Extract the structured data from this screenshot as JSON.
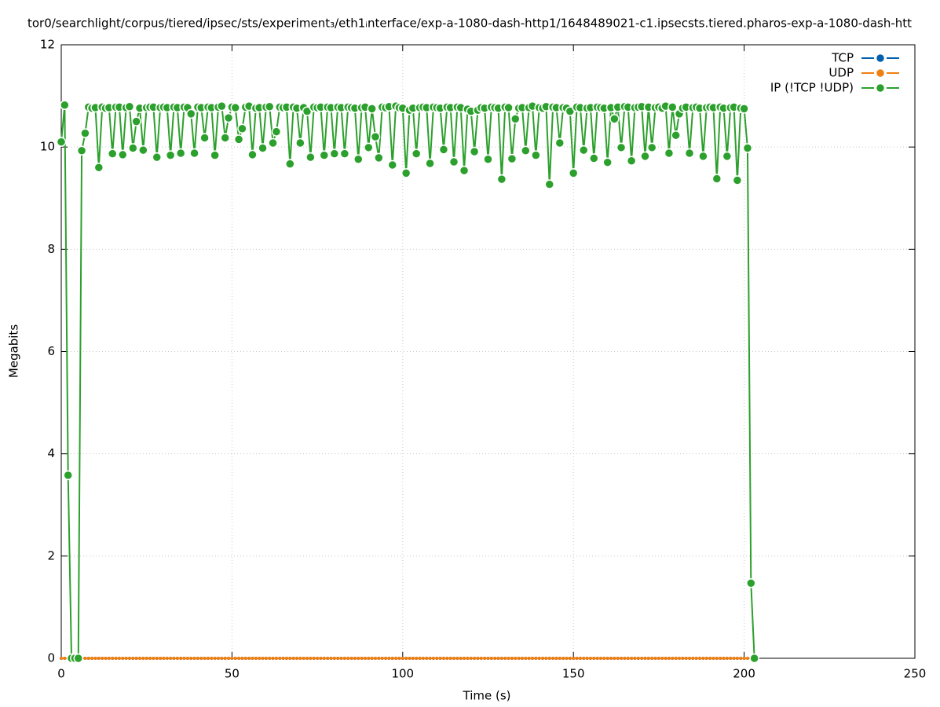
{
  "chart_data": {
    "type": "line",
    "title": "tor0/searchlight/corpus/tiered/ipsec/sts/experiment₃/eth1ᵢnterface/exp-a-1080-dash-http1/1648489021-c1.ipsecsts.tiered.pharos-exp-a-1080-dash-htt",
    "xlabel": "Time (s)",
    "ylabel": "Megabits",
    "xlim": [
      0,
      250
    ],
    "xticks": [
      0,
      50,
      100,
      150,
      200,
      250
    ],
    "ylim": [
      0,
      12
    ],
    "yticks": [
      0,
      2,
      4,
      6,
      8,
      10,
      12
    ],
    "grid": true,
    "legend": "top-right",
    "x": [
      0,
      1,
      2,
      3,
      4,
      5,
      6,
      7,
      8,
      9,
      10,
      11,
      12,
      13,
      14,
      15,
      16,
      17,
      18,
      19,
      20,
      21,
      22,
      23,
      24,
      25,
      26,
      27,
      28,
      29,
      30,
      31,
      32,
      33,
      34,
      35,
      36,
      37,
      38,
      39,
      40,
      41,
      42,
      43,
      44,
      45,
      46,
      47,
      48,
      49,
      50,
      51,
      52,
      53,
      54,
      55,
      56,
      57,
      58,
      59,
      60,
      61,
      62,
      63,
      64,
      65,
      66,
      67,
      68,
      69,
      70,
      71,
      72,
      73,
      74,
      75,
      76,
      77,
      78,
      79,
      80,
      81,
      82,
      83,
      84,
      85,
      86,
      87,
      88,
      89,
      90,
      91,
      92,
      93,
      94,
      95,
      96,
      97,
      98,
      99,
      100,
      101,
      102,
      103,
      104,
      105,
      106,
      107,
      108,
      109,
      110,
      111,
      112,
      113,
      114,
      115,
      116,
      117,
      118,
      119,
      120,
      121,
      122,
      123,
      124,
      125,
      126,
      127,
      128,
      129,
      130,
      131,
      132,
      133,
      134,
      135,
      136,
      137,
      138,
      139,
      140,
      141,
      142,
      143,
      144,
      145,
      146,
      147,
      148,
      149,
      150,
      151,
      152,
      153,
      154,
      155,
      156,
      157,
      158,
      159,
      160,
      161,
      162,
      163,
      164,
      165,
      166,
      167,
      168,
      169,
      170,
      171,
      172,
      173,
      174,
      175,
      176,
      177,
      178,
      179,
      180,
      181,
      182,
      183,
      184,
      185,
      186,
      187,
      188,
      189,
      190,
      191,
      192,
      193,
      194,
      195,
      196,
      197,
      198,
      199,
      200,
      201,
      202,
      203
    ],
    "series": [
      {
        "name": "TCP",
        "color": "#0060ad",
        "values": [
          0,
          0,
          0,
          0,
          0,
          0,
          0,
          0,
          0,
          0,
          0,
          0,
          0,
          0,
          0,
          0,
          0,
          0,
          0,
          0,
          0,
          0,
          0,
          0,
          0,
          0,
          0,
          0,
          0,
          0,
          0,
          0,
          0,
          0,
          0,
          0,
          0,
          0,
          0,
          0,
          0,
          0,
          0,
          0,
          0,
          0,
          0,
          0,
          0,
          0,
          0,
          0,
          0,
          0,
          0,
          0,
          0,
          0,
          0,
          0,
          0,
          0,
          0,
          0,
          0,
          0,
          0,
          0,
          0,
          0,
          0,
          0,
          0,
          0,
          0,
          0,
          0,
          0,
          0,
          0,
          0,
          0,
          0,
          0,
          0,
          0,
          0,
          0,
          0,
          0,
          0,
          0,
          0,
          0,
          0,
          0,
          0,
          0,
          0,
          0,
          0,
          0,
          0,
          0,
          0,
          0,
          0,
          0,
          0,
          0,
          0,
          0,
          0,
          0,
          0,
          0,
          0,
          0,
          0,
          0,
          0,
          0,
          0,
          0,
          0,
          0,
          0,
          0,
          0,
          0,
          0,
          0,
          0,
          0,
          0,
          0,
          0,
          0,
          0,
          0,
          0,
          0,
          0,
          0,
          0,
          0,
          0,
          0,
          0,
          0,
          0,
          0,
          0,
          0,
          0,
          0,
          0,
          0,
          0,
          0,
          0,
          0,
          0,
          0,
          0,
          0,
          0,
          0,
          0,
          0,
          0,
          0,
          0,
          0,
          0,
          0,
          0,
          0,
          0,
          0,
          0,
          0,
          0,
          0,
          0,
          0,
          0,
          0,
          0,
          0,
          0,
          0,
          0,
          0,
          0,
          0,
          0,
          0,
          0,
          0,
          0,
          0,
          0,
          0
        ]
      },
      {
        "name": "UDP",
        "color": "#f07f10",
        "values": [
          0,
          0,
          0,
          0,
          0,
          0,
          0,
          0,
          0,
          0,
          0,
          0,
          0,
          0,
          0,
          0,
          0,
          0,
          0,
          0,
          0,
          0,
          0,
          0,
          0,
          0,
          0,
          0,
          0,
          0,
          0,
          0,
          0,
          0,
          0,
          0,
          0,
          0,
          0,
          0,
          0,
          0,
          0,
          0,
          0,
          0,
          0,
          0,
          0,
          0,
          0,
          0,
          0,
          0,
          0,
          0,
          0,
          0,
          0,
          0,
          0,
          0,
          0,
          0,
          0,
          0,
          0,
          0,
          0,
          0,
          0,
          0,
          0,
          0,
          0,
          0,
          0,
          0,
          0,
          0,
          0,
          0,
          0,
          0,
          0,
          0,
          0,
          0,
          0,
          0,
          0,
          0,
          0,
          0,
          0,
          0,
          0,
          0,
          0,
          0,
          0,
          0,
          0,
          0,
          0,
          0,
          0,
          0,
          0,
          0,
          0,
          0,
          0,
          0,
          0,
          0,
          0,
          0,
          0,
          0,
          0,
          0,
          0,
          0,
          0,
          0,
          0,
          0,
          0,
          0,
          0,
          0,
          0,
          0,
          0,
          0,
          0,
          0,
          0,
          0,
          0,
          0,
          0,
          0,
          0,
          0,
          0,
          0,
          0,
          0,
          0,
          0,
          0,
          0,
          0,
          0,
          0,
          0,
          0,
          0,
          0,
          0,
          0,
          0,
          0,
          0,
          0,
          0,
          0,
          0,
          0,
          0,
          0,
          0,
          0,
          0,
          0,
          0,
          0,
          0,
          0,
          0,
          0,
          0,
          0,
          0,
          0,
          0,
          0,
          0,
          0,
          0,
          0,
          0,
          0,
          0,
          0,
          0,
          0,
          0,
          0,
          0,
          0,
          0
        ]
      },
      {
        "name": "IP (!TCP  !UDP)",
        "color": "#2ca02c",
        "values": [
          10.1,
          10.82,
          3.58,
          0,
          0,
          0,
          9.93,
          10.27,
          10.78,
          10.76,
          10.77,
          9.6,
          10.78,
          10.76,
          10.77,
          9.87,
          10.78,
          10.78,
          9.85,
          10.77,
          10.79,
          9.98,
          10.5,
          10.76,
          9.94,
          10.77,
          10.78,
          10.78,
          9.8,
          10.77,
          10.78,
          10.77,
          9.84,
          10.78,
          10.77,
          9.88,
          10.78,
          10.77,
          10.65,
          9.88,
          10.78,
          10.77,
          10.18,
          10.78,
          10.77,
          9.84,
          10.78,
          10.8,
          10.18,
          10.57,
          10.78,
          10.77,
          10.15,
          10.36,
          10.78,
          10.8,
          9.85,
          10.76,
          10.77,
          9.98,
          10.78,
          10.79,
          10.08,
          10.3,
          10.78,
          10.77,
          10.78,
          9.67,
          10.78,
          10.76,
          10.08,
          10.77,
          10.7,
          9.8,
          10.78,
          10.77,
          10.78,
          9.84,
          10.78,
          10.77,
          9.87,
          10.78,
          10.77,
          9.87,
          10.78,
          10.77,
          10.76,
          9.76,
          10.77,
          10.78,
          9.99,
          10.75,
          10.2,
          9.79,
          10.78,
          10.77,
          10.79,
          9.65,
          10.8,
          10.77,
          10.76,
          9.49,
          10.72,
          10.76,
          9.87,
          10.77,
          10.78,
          10.77,
          9.68,
          10.78,
          10.77,
          10.76,
          9.95,
          10.78,
          10.77,
          9.71,
          10.78,
          10.77,
          9.54,
          10.74,
          10.7,
          9.91,
          10.72,
          10.77,
          10.76,
          9.76,
          10.78,
          10.77,
          10.76,
          9.37,
          10.78,
          10.77,
          9.77,
          10.55,
          10.76,
          10.77,
          9.93,
          10.77,
          10.8,
          9.84,
          10.77,
          10.76,
          10.79,
          9.27,
          10.78,
          10.77,
          10.08,
          10.77,
          10.76,
          10.7,
          9.49,
          10.78,
          10.77,
          9.94,
          10.76,
          10.77,
          9.78,
          10.78,
          10.77,
          10.76,
          9.7,
          10.77,
          10.55,
          10.78,
          9.99,
          10.79,
          10.78,
          9.73,
          10.77,
          10.78,
          10.79,
          9.82,
          10.78,
          9.99,
          10.77,
          10.78,
          10.76,
          10.8,
          9.88,
          10.78,
          10.23,
          10.65,
          10.76,
          10.78,
          9.88,
          10.77,
          10.78,
          10.76,
          9.82,
          10.77,
          10.78,
          10.77,
          9.38,
          10.78,
          10.76,
          9.82,
          10.77,
          10.78,
          9.35,
          10.76,
          10.75,
          9.98,
          1.47,
          0
        ]
      }
    ]
  }
}
